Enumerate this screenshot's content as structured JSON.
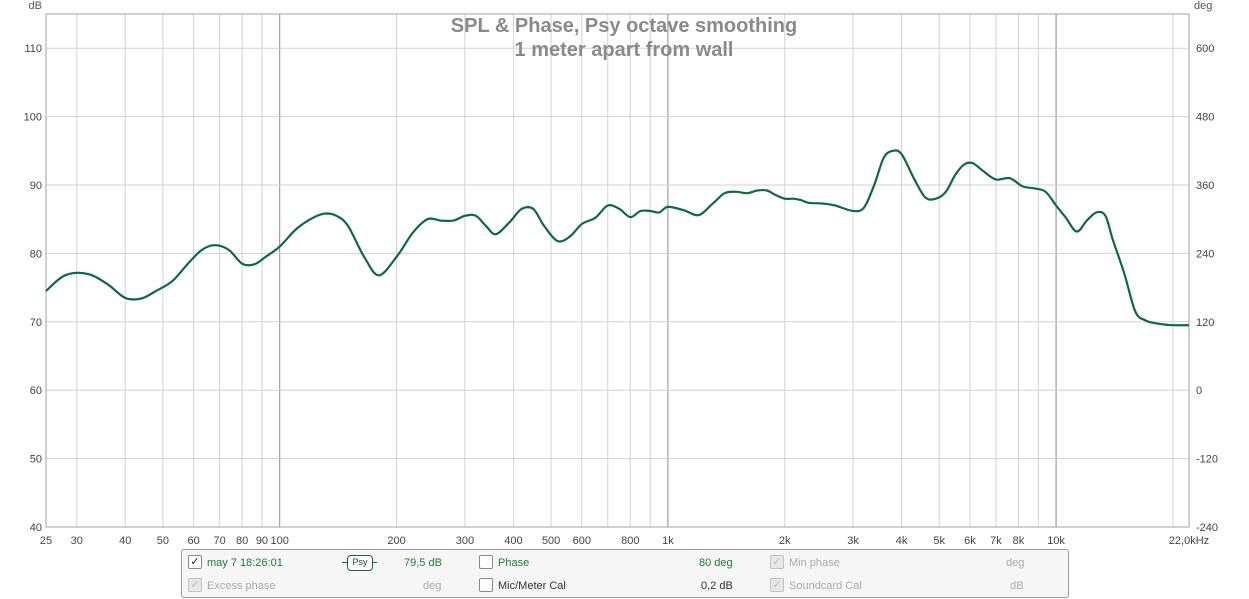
{
  "colors": {
    "curve": "#0e6a3e",
    "grid": "#d2d2d2",
    "grid_major": "#8c8c8c",
    "title": "#8a8a8a",
    "value_green": "#1e7a3c"
  },
  "chart_data": {
    "type": "line",
    "title": "SPL & Phase, Psy octave smoothing",
    "subtitle": "1 meter apart from wall",
    "ylabel": "dB",
    "y2label": "deg",
    "x_scale": "log",
    "xlim": [
      25,
      22000
    ],
    "ylim": [
      40,
      115
    ],
    "y2lim": [
      -240,
      660
    ],
    "grid": true,
    "x_ticks": [
      {
        "value": 25,
        "label": "25"
      },
      {
        "value": 30,
        "label": "30"
      },
      {
        "value": 40,
        "label": "40"
      },
      {
        "value": 50,
        "label": "50"
      },
      {
        "value": 60,
        "label": "60"
      },
      {
        "value": 70,
        "label": "70"
      },
      {
        "value": 80,
        "label": "80"
      },
      {
        "value": 90,
        "label": "90"
      },
      {
        "value": 100,
        "label": "100"
      },
      {
        "value": 200,
        "label": "200"
      },
      {
        "value": 300,
        "label": "300"
      },
      {
        "value": 400,
        "label": "400"
      },
      {
        "value": 500,
        "label": "500"
      },
      {
        "value": 600,
        "label": "600"
      },
      {
        "value": 800,
        "label": "800"
      },
      {
        "value": 1000,
        "label": "1k"
      },
      {
        "value": 2000,
        "label": "2k"
      },
      {
        "value": 3000,
        "label": "3k"
      },
      {
        "value": 4000,
        "label": "4k"
      },
      {
        "value": 5000,
        "label": "5k"
      },
      {
        "value": 6000,
        "label": "6k"
      },
      {
        "value": 7000,
        "label": "7k"
      },
      {
        "value": 8000,
        "label": "8k"
      },
      {
        "value": 10000,
        "label": "10k"
      },
      {
        "value": 22000,
        "label": "22,0kHz"
      }
    ],
    "y_ticks": [
      40,
      50,
      60,
      70,
      80,
      90,
      100,
      110
    ],
    "y2_ticks": [
      -240,
      -120,
      0,
      120,
      240,
      360,
      480,
      600
    ],
    "series": [
      {
        "name": "may 7 18:26:01",
        "x": [
          25,
          28,
          32,
          36,
          40,
          44,
          48,
          53,
          58,
          63,
          68,
          74,
          80,
          86,
          92,
          100,
          110,
          120,
          130,
          140,
          150,
          165,
          180,
          200,
          220,
          240,
          260,
          280,
          300,
          320,
          340,
          360,
          390,
          420,
          450,
          480,
          520,
          560,
          600,
          650,
          700,
          750,
          800,
          850,
          900,
          950,
          1000,
          1100,
          1200,
          1300,
          1400,
          1500,
          1600,
          1700,
          1800,
          1900,
          2000,
          2100,
          2200,
          2300,
          2500,
          2700,
          3000,
          3200,
          3400,
          3600,
          3800,
          4000,
          4300,
          4600,
          4900,
          5200,
          5500,
          5800,
          6100,
          6500,
          7000,
          7600,
          8200,
          8800,
          9400,
          10000,
          10600,
          11300,
          12000,
          12700,
          13400,
          14000,
          15000,
          16000,
          17000,
          18000,
          19000,
          20000,
          22000
        ],
        "values": [
          74.5,
          76.8,
          77.0,
          75.5,
          73.5,
          73.4,
          74.5,
          76.0,
          78.5,
          80.5,
          81.2,
          80.5,
          78.5,
          78.4,
          79.5,
          81.0,
          83.5,
          85.0,
          85.8,
          85.5,
          84.0,
          79.5,
          76.8,
          79.5,
          83.0,
          85.0,
          84.8,
          84.8,
          85.5,
          85.5,
          84.0,
          82.8,
          84.5,
          86.5,
          86.5,
          84.0,
          81.8,
          82.5,
          84.3,
          85.2,
          87.0,
          86.5,
          85.3,
          86.2,
          86.2,
          86.0,
          86.8,
          86.3,
          85.6,
          87.2,
          88.8,
          89.0,
          88.8,
          89.2,
          89.2,
          88.5,
          88.0,
          88.0,
          87.8,
          87.4,
          87.3,
          87.0,
          86.2,
          86.7,
          90.0,
          94.0,
          95.0,
          94.5,
          91.0,
          88.2,
          88.0,
          89.0,
          91.5,
          93.0,
          93.2,
          92.0,
          90.8,
          91.0,
          89.8,
          89.5,
          89.0,
          87.0,
          85.2,
          83.2,
          84.8,
          86.0,
          85.5,
          82.0,
          77.0,
          71.5,
          70.2,
          69.8,
          69.6,
          69.5,
          69.5
        ]
      }
    ]
  },
  "legend_panel": {
    "row1": {
      "trace_name": "may 7 18:26:01",
      "smoothing_badge": "Psy",
      "trace_value": "79,5 dB",
      "phase_label": "Phase",
      "phase_value": "80 deg",
      "min_phase_label": "Min phase",
      "min_phase_unit": "deg"
    },
    "row2": {
      "excess_phase_label": "Excess phase",
      "excess_phase_unit": "deg",
      "mic_cal_label": "Mic/Meter Cal",
      "mic_cal_value": "0,2 dB",
      "soundcard_cal_label": "Soundcard Cal",
      "soundcard_cal_unit": "dB"
    },
    "checkmark": "✓"
  }
}
